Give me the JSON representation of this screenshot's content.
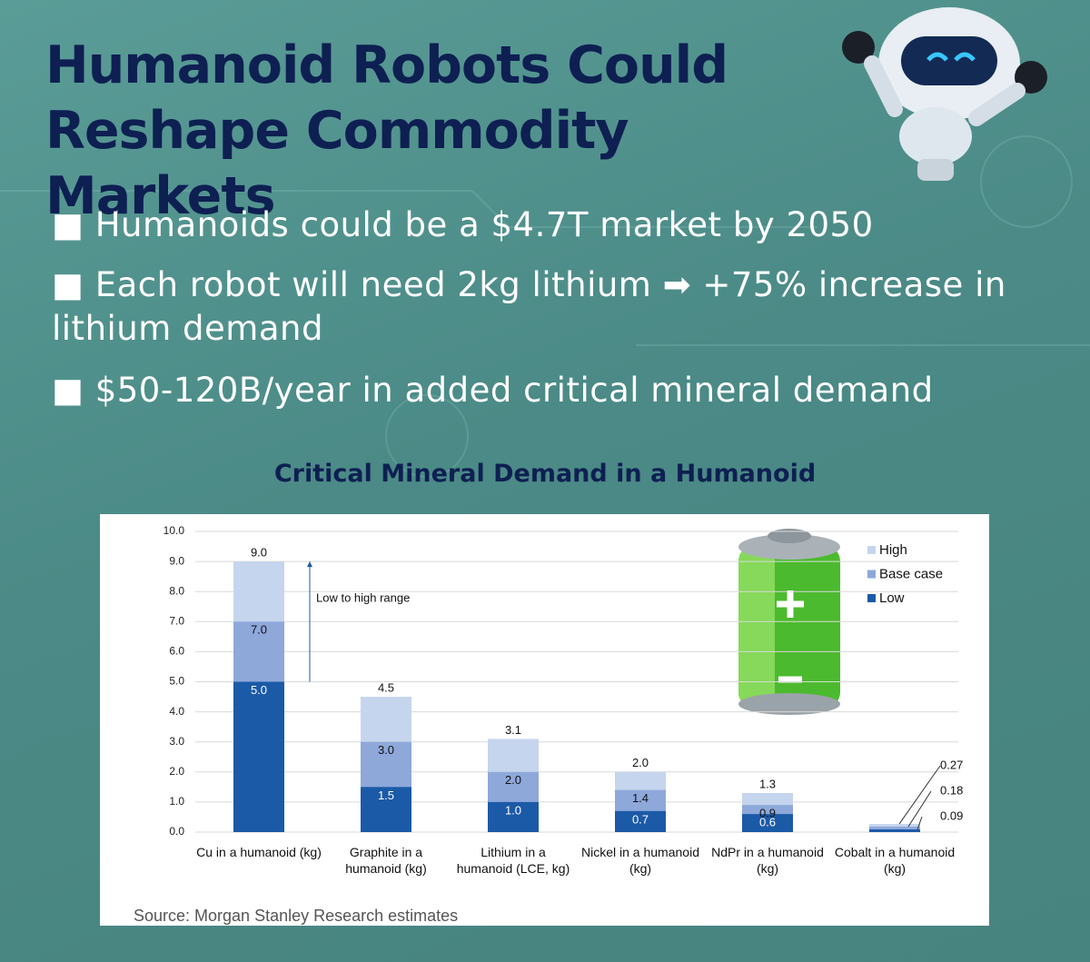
{
  "header": {
    "title": "Humanoid Robots Could Reshape Commodity Markets"
  },
  "bullets": [
    "■ Humanoids could be a $4.7T market by 2050",
    "■ Each robot will need 2kg lithium ➡ +75% increase in lithium demand",
    "■ $50-120B/year in added critical mineral demand"
  ],
  "chart_data": {
    "type": "bar",
    "title": "Critical Mineral Demand in a Humanoid",
    "categories": [
      "Cu in a humanoid (kg)",
      "Graphite in a\nhumanoid (kg)",
      "Lithium in a\nhumanoid (LCE, kg)",
      "Nickel in a humanoid\n(kg)",
      "NdPr in a humanoid\n(kg)",
      "Cobalt in a humanoid\n(kg)"
    ],
    "series": [
      {
        "name": "High",
        "color": "#c5d5ed",
        "values": [
          9.0,
          4.5,
          3.1,
          2.0,
          1.3,
          0.27
        ],
        "value_labels": [
          "9.0",
          "4.5",
          "3.1",
          "2.0",
          "1.3",
          "0.27"
        ]
      },
      {
        "name": "Base case",
        "color": "#8ea8da",
        "values": [
          7.0,
          3.0,
          2.0,
          1.4,
          0.9,
          0.18
        ],
        "value_labels": [
          "7.0",
          "3.0",
          "2.0",
          "1.4",
          "0.9",
          "0.18"
        ]
      },
      {
        "name": "Low",
        "color": "#1b5aa7",
        "values": [
          5.0,
          1.5,
          1.0,
          0.7,
          0.6,
          0.09
        ],
        "value_labels": [
          "5.0",
          "1.5",
          "1.0",
          "0.7",
          "0.6",
          "0.09"
        ]
      }
    ],
    "ylim": [
      0,
      10
    ],
    "yticks": [
      {
        "value": 0,
        "label": "0.0"
      },
      {
        "value": 1,
        "label": "1.0"
      },
      {
        "value": 2,
        "label": "2.0"
      },
      {
        "value": 3,
        "label": "3.0"
      },
      {
        "value": 4,
        "label": "4.0"
      },
      {
        "value": 5,
        "label": "5.0"
      },
      {
        "value": 6,
        "label": "6.0"
      },
      {
        "value": 7,
        "label": "7.0"
      },
      {
        "value": 8,
        "label": "8.0"
      },
      {
        "value": 9,
        "label": "9.0"
      },
      {
        "value": 10,
        "label": "10.0"
      }
    ],
    "grid": true,
    "legend": "top-right",
    "annotation": "Low to high range",
    "source": "Source: Morgan Stanley Research estimates"
  }
}
